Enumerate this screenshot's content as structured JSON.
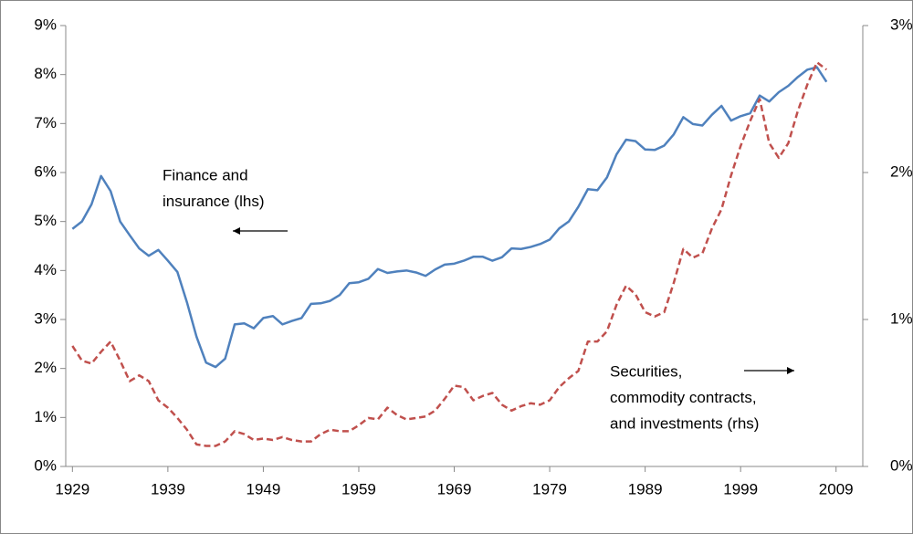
{
  "chart_data": {
    "type": "line",
    "x": [
      1929,
      1930,
      1931,
      1932,
      1933,
      1934,
      1935,
      1936,
      1937,
      1938,
      1939,
      1940,
      1941,
      1942,
      1943,
      1944,
      1945,
      1946,
      1947,
      1948,
      1949,
      1950,
      1951,
      1952,
      1953,
      1954,
      1955,
      1956,
      1957,
      1958,
      1959,
      1960,
      1961,
      1962,
      1963,
      1964,
      1965,
      1966,
      1967,
      1968,
      1969,
      1970,
      1971,
      1972,
      1973,
      1974,
      1975,
      1976,
      1977,
      1978,
      1979,
      1980,
      1981,
      1982,
      1983,
      1984,
      1985,
      1986,
      1987,
      1988,
      1989,
      1990,
      1991,
      1992,
      1993,
      1994,
      1995,
      1996,
      1997,
      1998,
      1999,
      2000,
      2001,
      2002,
      2003,
      2004,
      2005,
      2006,
      2007,
      2008
    ],
    "series": [
      {
        "name": "Finance and insurance (lhs)",
        "color": "#4f81bd",
        "dash": "solid",
        "axis": "y",
        "values": [
          4.85,
          5.0,
          5.35,
          5.93,
          5.62,
          5.0,
          4.72,
          4.45,
          4.3,
          4.42,
          4.2,
          3.97,
          3.35,
          2.65,
          2.12,
          2.03,
          2.2,
          2.9,
          2.92,
          2.82,
          3.03,
          3.07,
          2.9,
          2.97,
          3.03,
          3.32,
          3.33,
          3.38,
          3.5,
          3.74,
          3.76,
          3.83,
          4.03,
          3.95,
          3.98,
          4.0,
          3.96,
          3.89,
          4.02,
          4.12,
          4.14,
          4.2,
          4.28,
          4.28,
          4.2,
          4.27,
          4.45,
          4.44,
          4.48,
          4.54,
          4.63,
          4.86,
          5.0,
          5.3,
          5.66,
          5.64,
          5.9,
          6.37,
          6.67,
          6.64,
          6.47,
          6.46,
          6.55,
          6.78,
          7.13,
          6.99,
          6.96,
          7.18,
          7.36,
          7.06,
          7.15,
          7.21,
          7.57,
          7.45,
          7.64,
          7.77,
          7.95,
          8.1,
          8.15,
          7.85
        ]
      },
      {
        "name": "Securities, commodity contracts, and investments (rhs)",
        "color": "#c0504d",
        "dash": "dashed",
        "axis": "y2",
        "values": [
          0.82,
          0.72,
          0.7,
          0.78,
          0.85,
          0.72,
          0.58,
          0.62,
          0.58,
          0.45,
          0.4,
          0.33,
          0.25,
          0.15,
          0.14,
          0.14,
          0.17,
          0.24,
          0.22,
          0.18,
          0.19,
          0.18,
          0.2,
          0.18,
          0.17,
          0.17,
          0.22,
          0.25,
          0.24,
          0.24,
          0.28,
          0.33,
          0.32,
          0.4,
          0.35,
          0.32,
          0.33,
          0.34,
          0.38,
          0.46,
          0.55,
          0.54,
          0.45,
          0.48,
          0.5,
          0.42,
          0.38,
          0.41,
          0.43,
          0.42,
          0.45,
          0.54,
          0.6,
          0.65,
          0.85,
          0.85,
          0.92,
          1.1,
          1.23,
          1.17,
          1.05,
          1.02,
          1.05,
          1.25,
          1.48,
          1.42,
          1.45,
          1.62,
          1.75,
          1.98,
          2.18,
          2.35,
          2.5,
          2.2,
          2.1,
          2.2,
          2.42,
          2.6,
          2.75,
          2.7
        ]
      }
    ],
    "annotations": [
      {
        "lines": [
          "Finance and",
          "insurance (lhs)"
        ],
        "arrow": "left"
      },
      {
        "lines": [
          "Securities,",
          "commodity contracts,",
          "and investments (rhs)"
        ],
        "arrow": "right"
      }
    ],
    "xlim": [
      1928.3,
      2011.8
    ],
    "xticks": [
      1929,
      1939,
      1949,
      1959,
      1969,
      1979,
      1989,
      1999,
      2009
    ],
    "ylim": [
      0,
      9
    ],
    "yticks": [
      {
        "value": 0,
        "label": "0%"
      },
      {
        "value": 1,
        "label": "1%"
      },
      {
        "value": 2,
        "label": "2%"
      },
      {
        "value": 3,
        "label": "3%"
      },
      {
        "value": 4,
        "label": "4%"
      },
      {
        "value": 5,
        "label": "5%"
      },
      {
        "value": 6,
        "label": "6%"
      },
      {
        "value": 7,
        "label": "7%"
      },
      {
        "value": 8,
        "label": "8%"
      },
      {
        "value": 9,
        "label": "9%"
      }
    ],
    "y2lim": [
      0,
      3
    ],
    "y2ticks": [
      {
        "value": 0,
        "label": "0%"
      },
      {
        "value": 1,
        "label": "1%"
      },
      {
        "value": 2,
        "label": "2%"
      },
      {
        "value": 3,
        "label": "3%"
      }
    ],
    "grid": false
  }
}
